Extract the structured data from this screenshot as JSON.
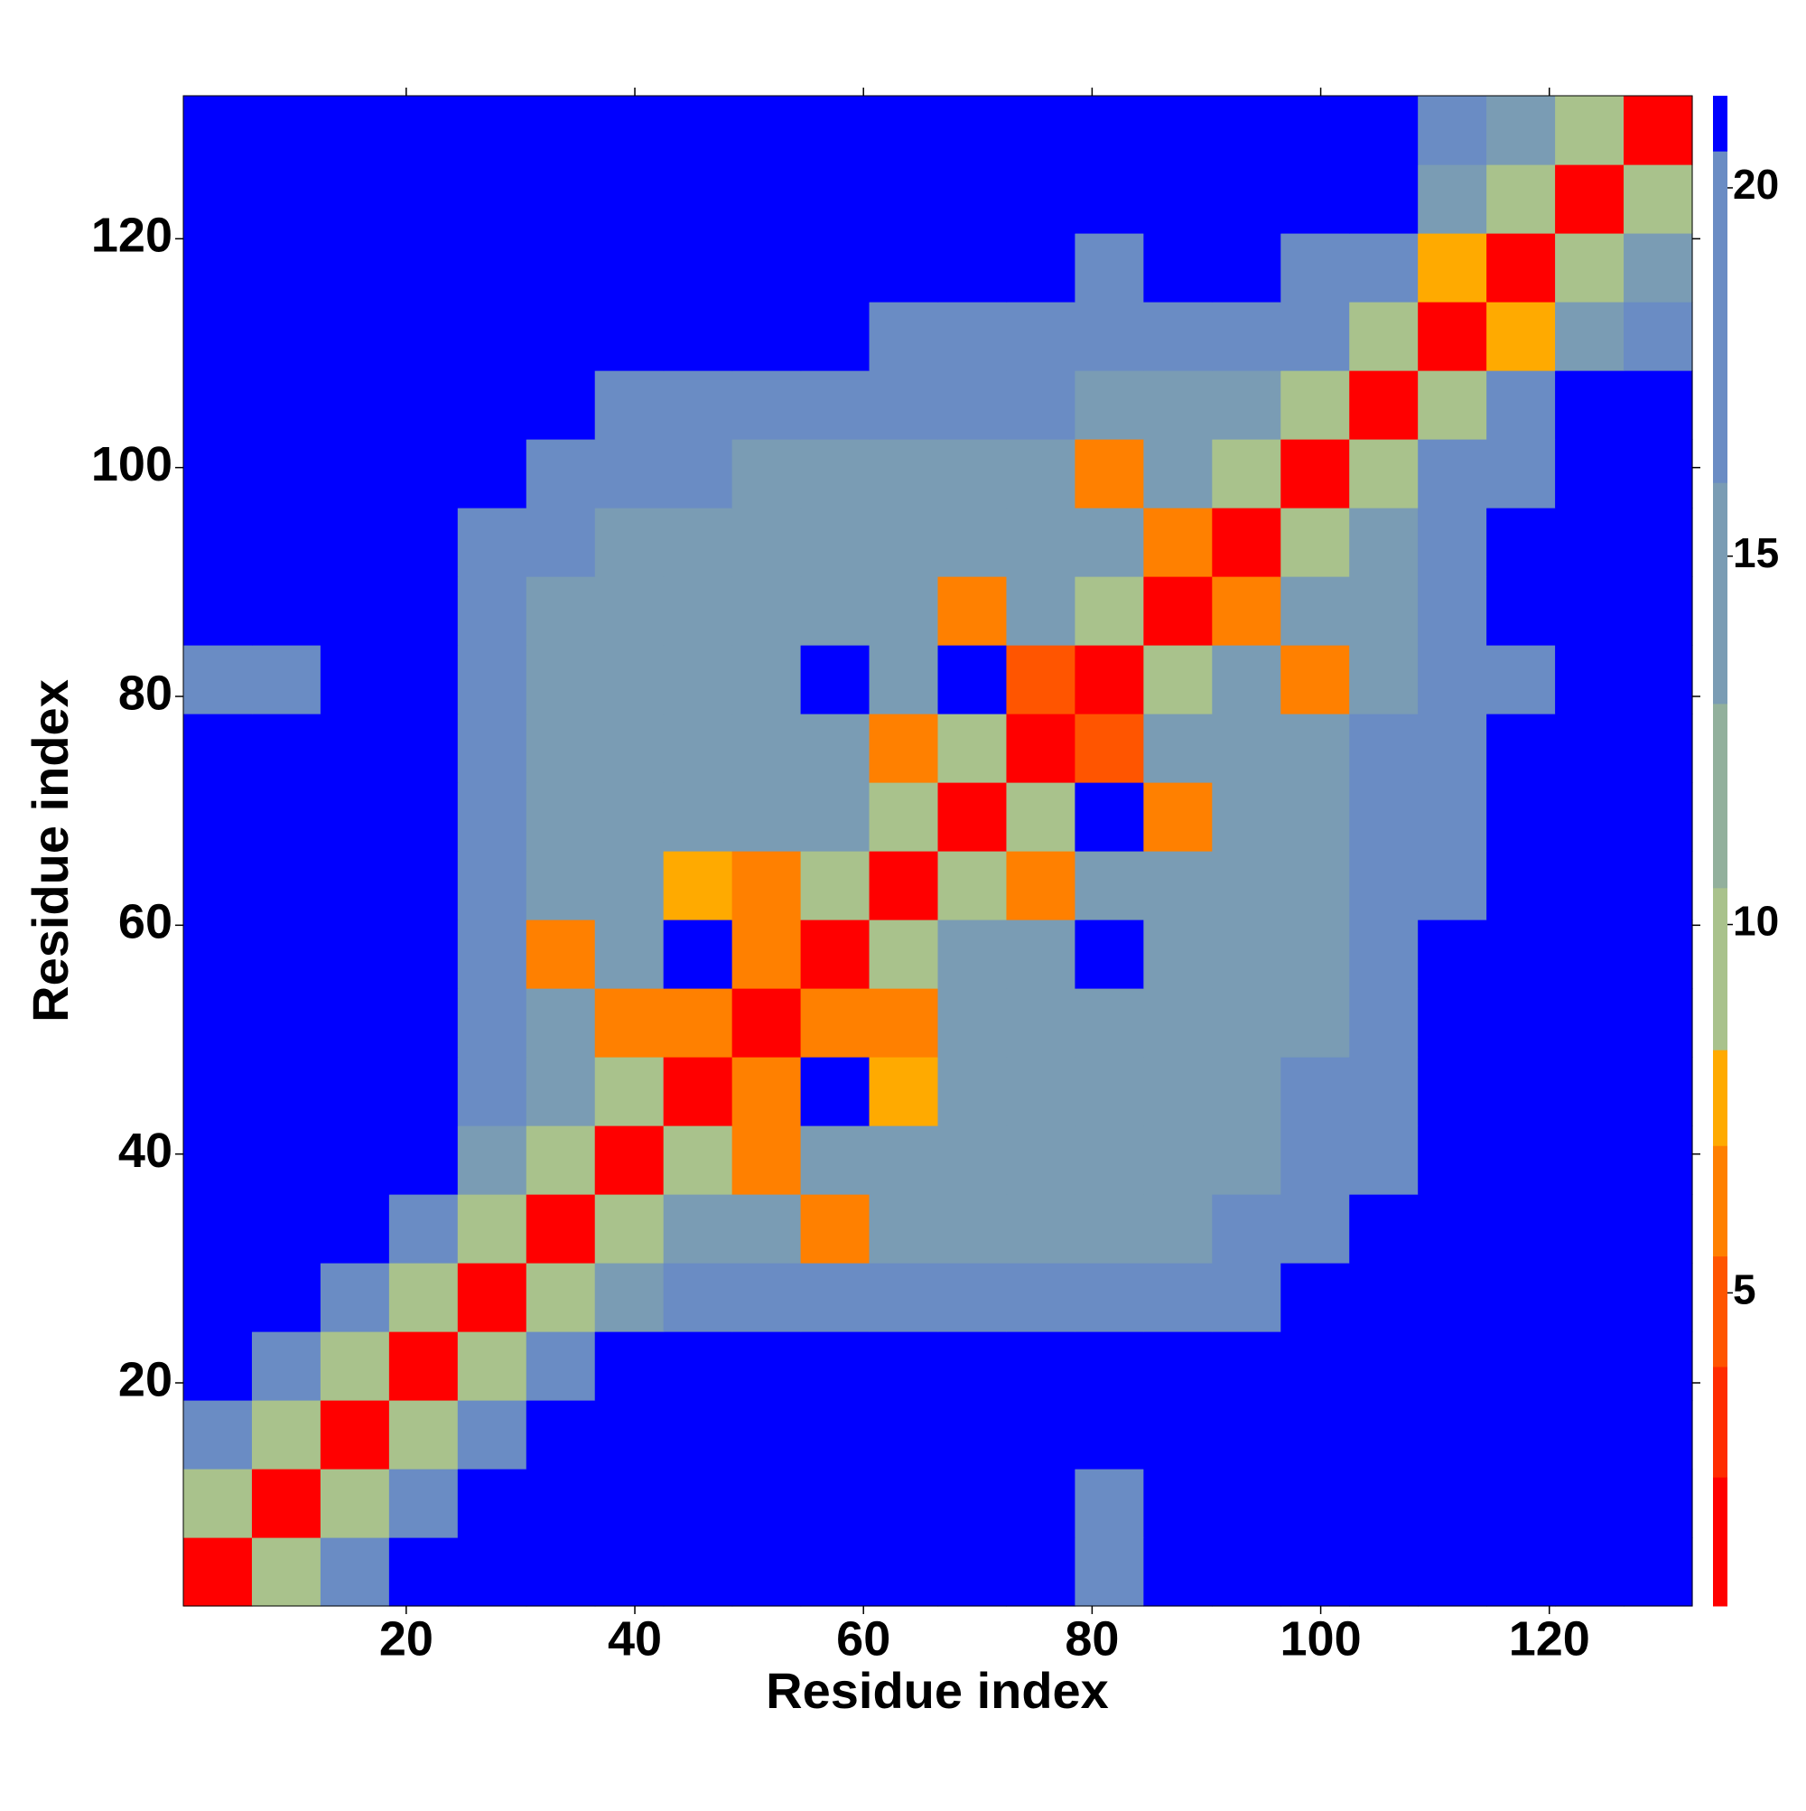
{
  "chart_data": {
    "type": "heatmap",
    "xlabel": "Residue index",
    "ylabel": "Residue index",
    "x": [
      3.5,
      9.5,
      15.5,
      21.5,
      27.5,
      33.5,
      39.5,
      45.5,
      51.5,
      57.5,
      63.5,
      69.5,
      75.5,
      81.5,
      87.5,
      93.5,
      99.5,
      105.5,
      111.5,
      117.5,
      123.5,
      129.5
    ],
    "y": [
      3.5,
      9.5,
      15.5,
      21.5,
      27.5,
      33.5,
      39.5,
      45.5,
      51.5,
      57.5,
      63.5,
      69.5,
      75.5,
      81.5,
      87.5,
      93.5,
      99.5,
      105.5,
      111.5,
      117.5,
      123.5,
      129.5
    ],
    "z": [
      [
        2,
        10,
        17,
        21,
        21,
        21,
        21,
        21,
        21,
        21,
        21,
        21,
        21,
        19,
        21,
        21,
        21,
        21,
        21,
        21,
        21,
        21
      ],
      [
        10,
        2,
        10,
        18,
        21,
        21,
        21,
        21,
        21,
        21,
        21,
        21,
        21,
        19,
        21,
        21,
        21,
        21,
        21,
        21,
        21,
        21
      ],
      [
        17,
        10,
        2,
        10,
        18,
        21,
        21,
        21,
        21,
        21,
        21,
        21,
        21,
        21,
        21,
        21,
        21,
        21,
        21,
        21,
        21,
        21
      ],
      [
        21,
        18,
        10,
        2,
        10,
        18,
        21,
        21,
        21,
        21,
        21,
        21,
        21,
        21,
        21,
        21,
        21,
        21,
        21,
        21,
        21,
        21
      ],
      [
        21,
        21,
        18,
        10,
        2,
        10,
        16,
        18,
        20,
        19,
        19,
        19,
        19,
        18,
        19,
        20,
        21,
        21,
        21,
        21,
        21,
        21
      ],
      [
        21,
        21,
        21,
        18,
        10,
        2,
        9,
        14,
        15,
        7,
        15,
        16,
        15,
        16,
        15,
        17,
        18,
        21,
        21,
        21,
        21,
        21
      ],
      [
        21,
        21,
        21,
        21,
        16,
        9,
        2,
        9,
        6,
        14,
        14,
        15,
        14,
        15,
        15,
        16,
        18,
        20,
        21,
        21,
        21,
        21
      ],
      [
        21,
        21,
        21,
        21,
        18,
        14,
        9,
        2,
        6,
        21,
        8,
        15,
        14,
        15,
        14,
        15,
        17,
        19,
        21,
        21,
        21,
        21
      ],
      [
        21,
        21,
        21,
        21,
        20,
        15,
        6,
        6,
        2,
        6,
        7,
        14,
        15,
        14,
        15,
        14,
        16,
        19,
        21,
        21,
        21,
        21
      ],
      [
        21,
        21,
        21,
        21,
        19,
        7,
        14,
        21,
        6,
        2,
        9,
        14,
        15,
        21,
        15,
        14,
        16,
        18,
        21,
        21,
        21,
        21
      ],
      [
        21,
        21,
        21,
        21,
        19,
        15,
        14,
        8,
        7,
        9,
        2,
        9,
        6,
        15,
        14,
        15,
        16,
        17,
        20,
        21,
        21,
        21
      ],
      [
        21,
        21,
        21,
        21,
        19,
        16,
        15,
        15,
        14,
        14,
        9,
        2,
        9,
        21,
        7,
        15,
        15,
        17,
        19,
        21,
        21,
        21
      ],
      [
        21,
        21,
        21,
        21,
        19,
        15,
        14,
        14,
        15,
        15,
        6,
        9,
        2,
        5,
        14,
        15,
        15,
        17,
        19,
        21,
        21,
        21
      ],
      [
        19,
        19,
        21,
        21,
        18,
        16,
        15,
        15,
        14,
        21,
        15,
        21,
        5,
        2,
        9,
        14,
        7,
        16,
        18,
        20,
        21,
        21
      ],
      [
        21,
        21,
        21,
        21,
        19,
        15,
        15,
        14,
        15,
        15,
        14,
        7,
        14,
        9,
        2,
        6,
        14,
        16,
        19,
        21,
        21,
        21
      ],
      [
        21,
        21,
        21,
        21,
        20,
        17,
        16,
        15,
        14,
        14,
        15,
        15,
        15,
        14,
        6,
        2,
        9,
        15,
        19,
        21,
        21,
        21
      ],
      [
        21,
        21,
        21,
        21,
        21,
        18,
        18,
        17,
        16,
        16,
        16,
        15,
        15,
        7,
        14,
        9,
        2,
        9,
        17,
        20,
        21,
        21
      ],
      [
        21,
        21,
        21,
        21,
        21,
        21,
        20,
        19,
        19,
        18,
        17,
        17,
        17,
        16,
        16,
        15,
        9,
        2,
        9,
        17,
        21,
        21
      ],
      [
        21,
        21,
        21,
        21,
        21,
        21,
        21,
        21,
        21,
        21,
        20,
        19,
        19,
        18,
        19,
        19,
        17,
        9,
        2,
        8,
        16,
        20
      ],
      [
        21,
        21,
        21,
        21,
        21,
        21,
        21,
        21,
        21,
        21,
        21,
        21,
        21,
        20,
        21,
        21,
        20,
        17,
        8,
        2,
        9,
        16
      ],
      [
        21,
        21,
        21,
        21,
        21,
        21,
        21,
        21,
        21,
        21,
        21,
        21,
        21,
        21,
        21,
        21,
        21,
        21,
        16,
        9,
        2,
        10
      ],
      [
        21,
        21,
        21,
        21,
        21,
        21,
        21,
        21,
        21,
        21,
        21,
        21,
        21,
        21,
        21,
        21,
        21,
        21,
        20,
        16,
        10,
        2
      ]
    ],
    "xlim": [
      0.5,
      132.5
    ],
    "ylim": [
      0.5,
      132.5
    ],
    "xticks": [
      20,
      40,
      60,
      80,
      100,
      120
    ],
    "yticks": [
      20,
      40,
      60,
      80,
      100,
      120
    ],
    "zlim": [
      0.75,
      21.25
    ],
    "zticks": [
      5,
      10,
      15,
      20
    ],
    "colorscale": [
      {
        "from": 0.75,
        "to": 2.5,
        "color": "#ff0000"
      },
      {
        "from": 2.5,
        "to": 4,
        "color": "#ff2c00"
      },
      {
        "from": 4,
        "to": 5.5,
        "color": "#ff5500"
      },
      {
        "from": 5.5,
        "to": 7,
        "color": "#ff8000"
      },
      {
        "from": 7,
        "to": 8.3,
        "color": "#ffaa00"
      },
      {
        "from": 8.3,
        "to": 10.5,
        "color": "#a9c28c"
      },
      {
        "from": 10.5,
        "to": 13,
        "color": "#92b09c"
      },
      {
        "from": 13,
        "to": 16,
        "color": "#7a9cb4"
      },
      {
        "from": 16,
        "to": 20.5,
        "color": "#6a8cc4"
      },
      {
        "from": 20.5,
        "to": 21.25,
        "color": "#0000ff"
      }
    ],
    "grid": false
  }
}
